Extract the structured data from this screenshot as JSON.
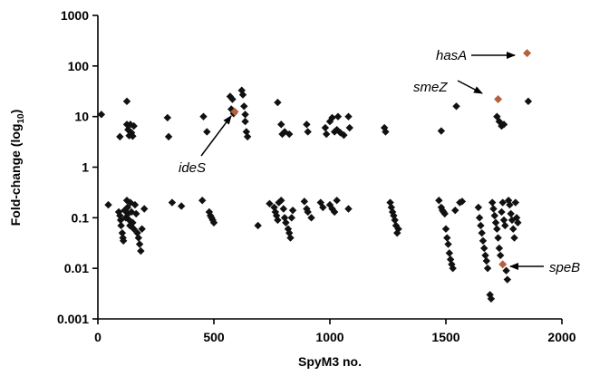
{
  "chart_data": {
    "type": "scatter",
    "xlabel": "SpyM3 no.",
    "ylabel": "Fold-change (log",
    "ylabel_sub": "10",
    "ylabel_end": ")",
    "x_ticks": [
      "0",
      "500",
      "1000",
      "1500",
      "2000"
    ],
    "y_ticks": [
      "0.001",
      "0.01",
      "0.1",
      "1",
      "10",
      "100",
      "1000"
    ],
    "xlim": [
      0,
      2000
    ],
    "ylim": [
      0.001,
      1000
    ],
    "y_scale": "log10",
    "grid": false,
    "colors": {
      "points": "#111111",
      "highlight": "#b5603f"
    },
    "highlighted": [
      {
        "label": "hasA",
        "x": 1850,
        "y": 180
      },
      {
        "label": "smeZ",
        "x": 1725,
        "y": 22
      },
      {
        "label": "ideS",
        "x": 590,
        "y": 12.5
      },
      {
        "label": "speB",
        "x": 1745,
        "y": 0.012
      }
    ],
    "points": [
      [
        15,
        11
      ],
      [
        95,
        4
      ],
      [
        125,
        20
      ],
      [
        125,
        7
      ],
      [
        130,
        5.5
      ],
      [
        135,
        4.2
      ],
      [
        140,
        7
      ],
      [
        145,
        4.8
      ],
      [
        150,
        4.1
      ],
      [
        155,
        6.5
      ],
      [
        300,
        9.5
      ],
      [
        305,
        4
      ],
      [
        455,
        10
      ],
      [
        470,
        5
      ],
      [
        570,
        25
      ],
      [
        575,
        14
      ],
      [
        580,
        22
      ],
      [
        585,
        11.5
      ],
      [
        620,
        33
      ],
      [
        625,
        27
      ],
      [
        630,
        16
      ],
      [
        635,
        11
      ],
      [
        635,
        8
      ],
      [
        640,
        5
      ],
      [
        645,
        4
      ],
      [
        775,
        19
      ],
      [
        790,
        7
      ],
      [
        795,
        4.5
      ],
      [
        805,
        5
      ],
      [
        825,
        4.5
      ],
      [
        900,
        7
      ],
      [
        905,
        5
      ],
      [
        980,
        6
      ],
      [
        985,
        4.5
      ],
      [
        1000,
        8
      ],
      [
        1010,
        9.5
      ],
      [
        1020,
        5
      ],
      [
        1030,
        5.5
      ],
      [
        1035,
        10
      ],
      [
        1045,
        4.8
      ],
      [
        1060,
        4.3
      ],
      [
        1080,
        10
      ],
      [
        1085,
        6
      ],
      [
        1235,
        6
      ],
      [
        1240,
        5
      ],
      [
        1480,
        5.2
      ],
      [
        1545,
        16
      ],
      [
        1720,
        10
      ],
      [
        1730,
        8
      ],
      [
        1740,
        6.5
      ],
      [
        1750,
        7
      ],
      [
        1855,
        20
      ],
      [
        45,
        0.18
      ],
      [
        90,
        0.13
      ],
      [
        95,
        0.11
      ],
      [
        98,
        0.09
      ],
      [
        100,
        0.07
      ],
      [
        105,
        0.05
      ],
      [
        108,
        0.04
      ],
      [
        110,
        0.035
      ],
      [
        115,
        0.14
      ],
      [
        120,
        0.1
      ],
      [
        125,
        0.22
      ],
      [
        128,
        0.16
      ],
      [
        130,
        0.12
      ],
      [
        135,
        0.09
      ],
      [
        138,
        0.07
      ],
      [
        140,
        0.2
      ],
      [
        145,
        0.13
      ],
      [
        150,
        0.08
      ],
      [
        155,
        0.06
      ],
      [
        160,
        0.18
      ],
      [
        165,
        0.12
      ],
      [
        170,
        0.05
      ],
      [
        175,
        0.04
      ],
      [
        180,
        0.03
      ],
      [
        185,
        0.022
      ],
      [
        190,
        0.06
      ],
      [
        200,
        0.15
      ],
      [
        320,
        0.2
      ],
      [
        360,
        0.17
      ],
      [
        450,
        0.22
      ],
      [
        480,
        0.13
      ],
      [
        485,
        0.11
      ],
      [
        490,
        0.1
      ],
      [
        495,
        0.09
      ],
      [
        500,
        0.08
      ],
      [
        690,
        0.07
      ],
      [
        740,
        0.19
      ],
      [
        760,
        0.16
      ],
      [
        765,
        0.13
      ],
      [
        770,
        0.11
      ],
      [
        775,
        0.09
      ],
      [
        780,
        0.2
      ],
      [
        790,
        0.22
      ],
      [
        800,
        0.15
      ],
      [
        805,
        0.1
      ],
      [
        810,
        0.08
      ],
      [
        820,
        0.06
      ],
      [
        825,
        0.05
      ],
      [
        830,
        0.04
      ],
      [
        835,
        0.1
      ],
      [
        840,
        0.14
      ],
      [
        890,
        0.21
      ],
      [
        900,
        0.15
      ],
      [
        905,
        0.13
      ],
      [
        920,
        0.1
      ],
      [
        960,
        0.2
      ],
      [
        970,
        0.16
      ],
      [
        1000,
        0.18
      ],
      [
        1010,
        0.15
      ],
      [
        1020,
        0.13
      ],
      [
        1030,
        0.22
      ],
      [
        1080,
        0.15
      ],
      [
        1260,
        0.2
      ],
      [
        1265,
        0.16
      ],
      [
        1270,
        0.13
      ],
      [
        1275,
        0.11
      ],
      [
        1280,
        0.09
      ],
      [
        1285,
        0.07
      ],
      [
        1290,
        0.05
      ],
      [
        1295,
        0.06
      ],
      [
        1470,
        0.22
      ],
      [
        1480,
        0.16
      ],
      [
        1485,
        0.14
      ],
      [
        1490,
        0.13
      ],
      [
        1495,
        0.12
      ],
      [
        1500,
        0.06
      ],
      [
        1505,
        0.04
      ],
      [
        1510,
        0.03
      ],
      [
        1515,
        0.02
      ],
      [
        1520,
        0.015
      ],
      [
        1525,
        0.012
      ],
      [
        1530,
        0.01
      ],
      [
        1540,
        0.14
      ],
      [
        1560,
        0.2
      ],
      [
        1570,
        0.21
      ],
      [
        1640,
        0.16
      ],
      [
        1645,
        0.1
      ],
      [
        1650,
        0.07
      ],
      [
        1655,
        0.05
      ],
      [
        1660,
        0.035
      ],
      [
        1665,
        0.025
      ],
      [
        1670,
        0.018
      ],
      [
        1675,
        0.014
      ],
      [
        1680,
        0.01
      ],
      [
        1690,
        0.003
      ],
      [
        1695,
        0.0025
      ],
      [
        1700,
        0.2
      ],
      [
        1705,
        0.15
      ],
      [
        1710,
        0.11
      ],
      [
        1715,
        0.08
      ],
      [
        1720,
        0.06
      ],
      [
        1725,
        0.04
      ],
      [
        1730,
        0.025
      ],
      [
        1735,
        0.018
      ],
      [
        1740,
        0.13
      ],
      [
        1745,
        0.2
      ],
      [
        1750,
        0.09
      ],
      [
        1755,
        0.07
      ],
      [
        1760,
        0.009
      ],
      [
        1765,
        0.006
      ],
      [
        1770,
        0.22
      ],
      [
        1775,
        0.18
      ],
      [
        1780,
        0.12
      ],
      [
        1785,
        0.09
      ],
      [
        1790,
        0.06
      ],
      [
        1795,
        0.04
      ],
      [
        1800,
        0.2
      ],
      [
        1805,
        0.1
      ],
      [
        1810,
        0.08
      ]
    ]
  }
}
